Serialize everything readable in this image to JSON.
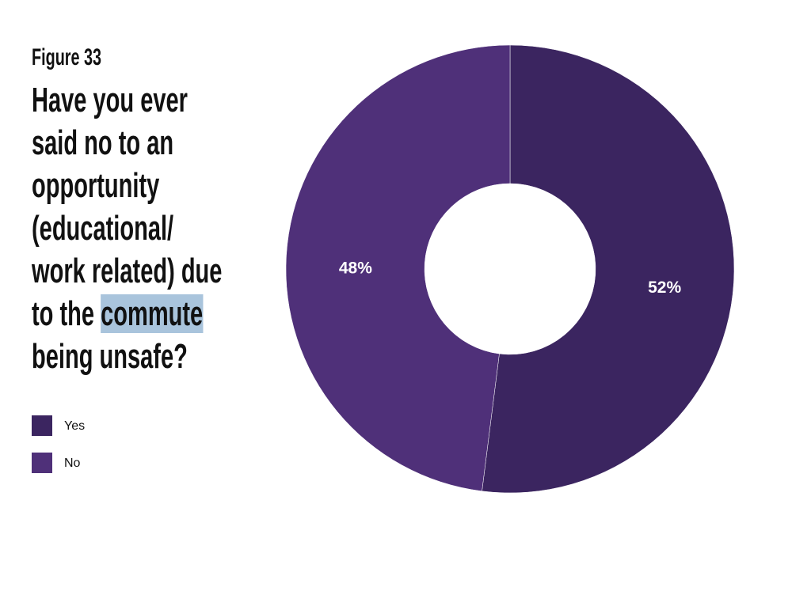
{
  "chart_data": {
    "type": "donut",
    "figure_label": "Figure 33",
    "title": [
      "Have you ever\nsaid no to an\nopportunity\n(educational/\nwork related) due\nto the ",
      "commute",
      "\nbeing unsafe?"
    ],
    "categories": [
      "Yes",
      "No"
    ],
    "values": [
      52,
      48
    ],
    "value_labels": [
      "52%",
      "48%"
    ],
    "colors": [
      "#3b2560",
      "#4f3079"
    ],
    "legend": "left"
  }
}
